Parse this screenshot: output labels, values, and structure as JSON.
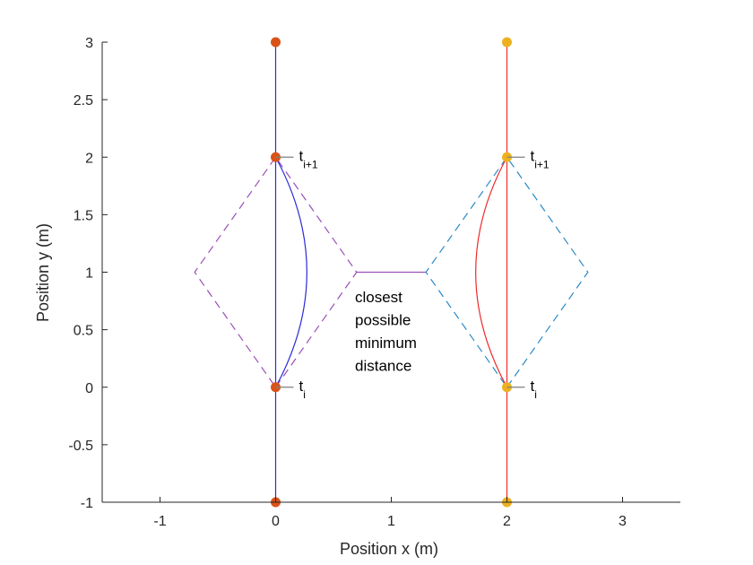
{
  "chart_data": {
    "type": "line",
    "xlabel": "Position x (m)",
    "ylabel": "Position y (m)",
    "xlim": [
      -1.5,
      3.5
    ],
    "ylim": [
      -1,
      3
    ],
    "x_ticks": [
      -1,
      0,
      1,
      2,
      3
    ],
    "y_ticks": [
      -1,
      -0.5,
      0,
      0.5,
      1,
      1.5,
      2,
      2.5,
      3
    ],
    "x_tick_labels": [
      "-1",
      "0",
      "1",
      "2",
      "3"
    ],
    "y_tick_labels": [
      "-1",
      "-0.5",
      "0",
      "0.5",
      "1",
      "1.5",
      "2",
      "2.5",
      "3"
    ],
    "grid": false,
    "colors": {
      "agent1_path": "#2b2bd6",
      "agent1_points": "#d95319",
      "agent2_path": "#ee2a2a",
      "agent2_points": "#edb120",
      "diamond1": "#9b4fb8",
      "diamond2": "#2a8ac7",
      "distance_line": "#9b4fb8",
      "annotation_pointer": "#808080"
    },
    "series": [
      {
        "x": [
          0,
          0
        ],
        "y": [
          -1,
          3
        ]
      },
      {
        "x": [
          0,
          0.27,
          0
        ],
        "y": [
          0,
          1,
          2
        ],
        "curve": "arc"
      },
      {
        "x": [
          2,
          2
        ],
        "y": [
          -1,
          3
        ]
      },
      {
        "x": [
          2,
          1.73,
          2
        ],
        "y": [
          0,
          1,
          2
        ],
        "curve": "arc"
      },
      {
        "x": [
          0,
          0.7,
          0,
          -0.7,
          0
        ],
        "y": [
          0,
          1,
          2,
          1,
          0
        ],
        "style": "dashed"
      },
      {
        "x": [
          2,
          2.7,
          2,
          1.3,
          2
        ],
        "y": [
          0,
          1,
          2,
          1,
          0
        ],
        "style": "dashed"
      },
      {
        "x": [
          0.7,
          1.3
        ],
        "y": [
          1,
          1
        ]
      }
    ],
    "points": [
      {
        "x": 0,
        "y": -1
      },
      {
        "x": 0,
        "y": 0
      },
      {
        "x": 0,
        "y": 2
      },
      {
        "x": 0,
        "y": 3
      },
      {
        "x": 2,
        "y": -1
      },
      {
        "x": 2,
        "y": 0
      },
      {
        "x": 2,
        "y": 2
      },
      {
        "x": 2,
        "y": 3
      }
    ],
    "annotations": [
      {
        "main": "t",
        "sub": "i",
        "x": 0,
        "y": 0
      },
      {
        "main": "t",
        "sub": "i+1",
        "x": 0,
        "y": 2
      },
      {
        "main": "t",
        "sub": "i",
        "x": 2,
        "y": 0
      },
      {
        "main": "t",
        "sub": "i+1",
        "x": 2,
        "y": 2
      }
    ],
    "distance_text": [
      "closest",
      "possible",
      "minimum",
      "distance"
    ]
  }
}
